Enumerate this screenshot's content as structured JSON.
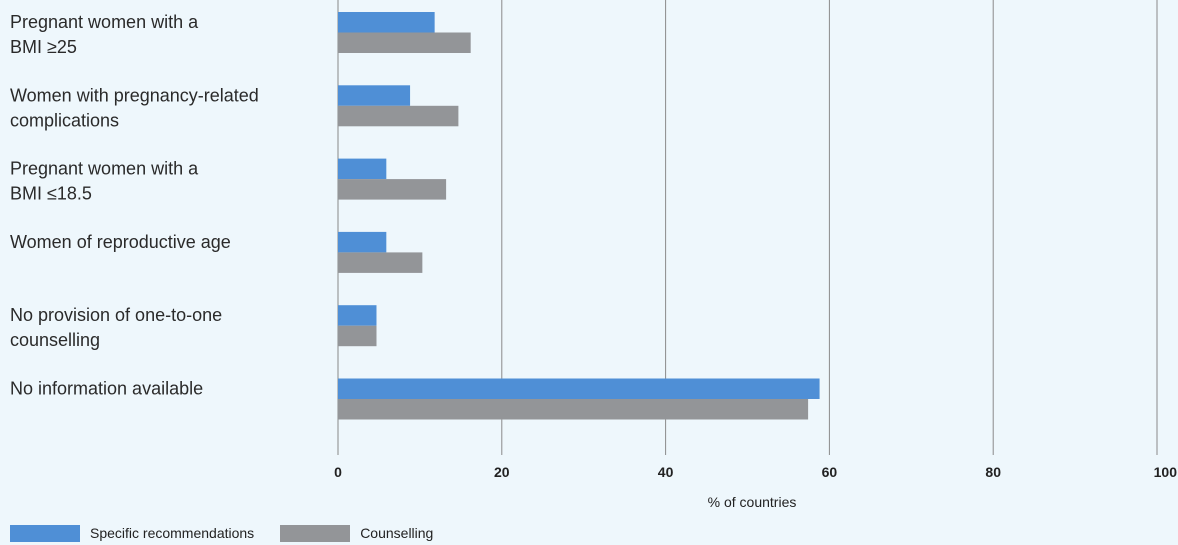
{
  "chart_data": {
    "type": "bar",
    "orientation": "horizontal",
    "categories": [
      [
        "Pregnant women with a",
        "BMI ≥25"
      ],
      [
        "Women with pregnancy-related",
        "complications"
      ],
      [
        "Pregnant women with a",
        "BMI ≤18.5"
      ],
      [
        "Women of reproductive age"
      ],
      [
        "No provision of one-to-one",
        "counselling"
      ],
      [
        "No information available"
      ]
    ],
    "series": [
      {
        "name": "Specific recommendations",
        "color": "#4f8fd6",
        "values": [
          11.8,
          8.8,
          5.9,
          5.9,
          4.7,
          58.8
        ]
      },
      {
        "name": "Counselling",
        "color": "#939598",
        "values": [
          16.2,
          14.7,
          13.2,
          10.3,
          4.7,
          57.4
        ]
      }
    ],
    "xlabel": "% of countries",
    "xlim": [
      0,
      100
    ],
    "xticks": [
      "0",
      "20",
      "40",
      "60",
      "80",
      "100"
    ],
    "grid": true,
    "legend_position": "bottom-left"
  },
  "legend": {
    "items": [
      "Specific recommendations",
      "Counselling"
    ]
  }
}
